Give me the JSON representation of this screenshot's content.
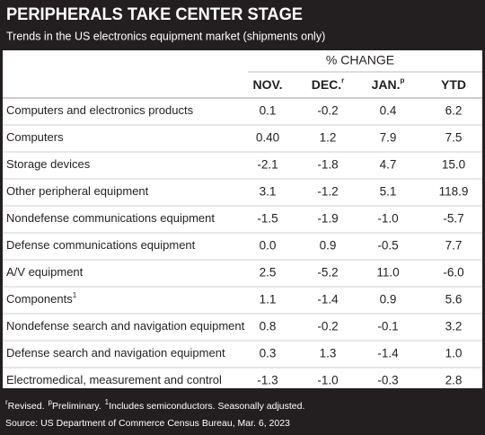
{
  "header": {
    "title": "PERIPHERALS TAKE CENTER STAGE",
    "subtitle": "Trends in the US electronics equipment market (shipments only)"
  },
  "table": {
    "group_header": "% CHANGE",
    "columns": [
      {
        "text": "NOV."
      },
      {
        "text": "DEC.",
        "sup": "r"
      },
      {
        "text": "JAN.",
        "sup": "p"
      },
      {
        "text": "YTD"
      }
    ],
    "rows": [
      {
        "label": "Computers and electronics products",
        "values": [
          "0.1",
          "-0.2",
          "0.4",
          "6.2"
        ]
      },
      {
        "label": "Computers",
        "values": [
          "0.40",
          "1.2",
          "7.9",
          "7.5"
        ]
      },
      {
        "label": "Storage devices",
        "values": [
          "-2.1",
          "-1.8",
          "4.7",
          "15.0"
        ]
      },
      {
        "label": "Other peripheral equipment",
        "values": [
          "3.1",
          "-1.2",
          "5.1",
          "118.9"
        ]
      },
      {
        "label": "Nondefense communications equipment",
        "values": [
          "-1.5",
          "-1.9",
          "-1.0",
          "-5.7"
        ]
      },
      {
        "label": "Defense communications equipment",
        "values": [
          "0.0",
          "0.9",
          "-0.5",
          "7.7"
        ]
      },
      {
        "label": "A/V equipment",
        "values": [
          "2.5",
          "-5.2",
          "11.0",
          "-6.0"
        ]
      },
      {
        "label": "Components",
        "sup": "1",
        "values": [
          "1.1",
          "-1.4",
          "0.9",
          "5.6"
        ]
      },
      {
        "label": "Nondefense search and navigation equipment",
        "values": [
          "0.8",
          "-0.2",
          "-0.1",
          "3.2"
        ]
      },
      {
        "label": "Defense search and navigation equipment",
        "values": [
          "0.3",
          "1.3",
          "-1.4",
          "1.0"
        ]
      },
      {
        "label": "Electromedical, measurement and control",
        "values": [
          "-1.3",
          "-1.0",
          "-0.3",
          "2.8"
        ]
      }
    ]
  },
  "footer": {
    "notes": [
      {
        "mark": "r",
        "text": "Revised."
      },
      {
        "mark": "p",
        "text": "Preliminary."
      },
      {
        "mark": "1",
        "text": "Includes semiconductors. Seasonally adjusted."
      }
    ],
    "source": "Source: US Department of Commerce Census Bureau, Mar. 6, 2023"
  }
}
